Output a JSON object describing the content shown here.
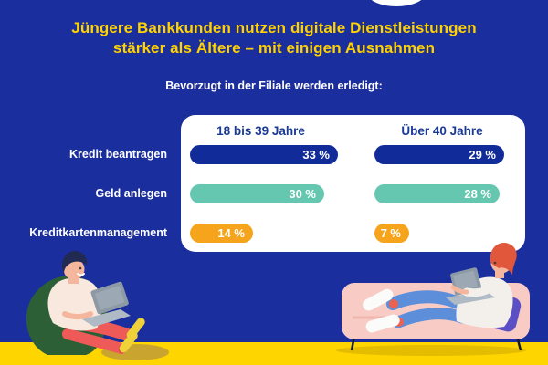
{
  "header": {
    "title_line1": "Jüngere Bankkunden nutzen digitale Dienstleistungen",
    "title_line2": "stärker als Ältere – mit einigen Ausnahmen",
    "subtitle": "Bevorzugt in der Filiale werden erledigt:"
  },
  "chart_data": {
    "type": "bar",
    "orientation": "horizontal",
    "title": "Bevorzugt in der Filiale werden erledigt:",
    "categories": [
      "Kredit beantragen",
      "Geld anlegen",
      "Kreditkartenmanagement"
    ],
    "series": [
      {
        "name": "18 bis 39 Jahre",
        "values": [
          33,
          30,
          14
        ]
      },
      {
        "name": "Über 40 Jahre",
        "values": [
          29,
          28,
          7
        ]
      }
    ],
    "value_labels": [
      [
        "33 %",
        "29 %"
      ],
      [
        "30 %",
        "28 %"
      ],
      [
        "14 %",
        "7 %"
      ]
    ],
    "unit": "%",
    "xlim": [
      0,
      35
    ],
    "grid": false,
    "legend_position": "column-headers-top",
    "bar_colors_by_row": [
      "#112C99",
      "#65C7AF",
      "#F6A41C"
    ]
  },
  "colors": {
    "background": "#1B2E9E",
    "title_text": "#FFD200",
    "panel": "#FFFFFF",
    "column_header_text": "#1A3A96",
    "floor": "#FFD500"
  },
  "illustrations": {
    "left": "young-person-on-beanbag-with-laptop",
    "right": "person-lying-on-couch-with-laptop"
  }
}
